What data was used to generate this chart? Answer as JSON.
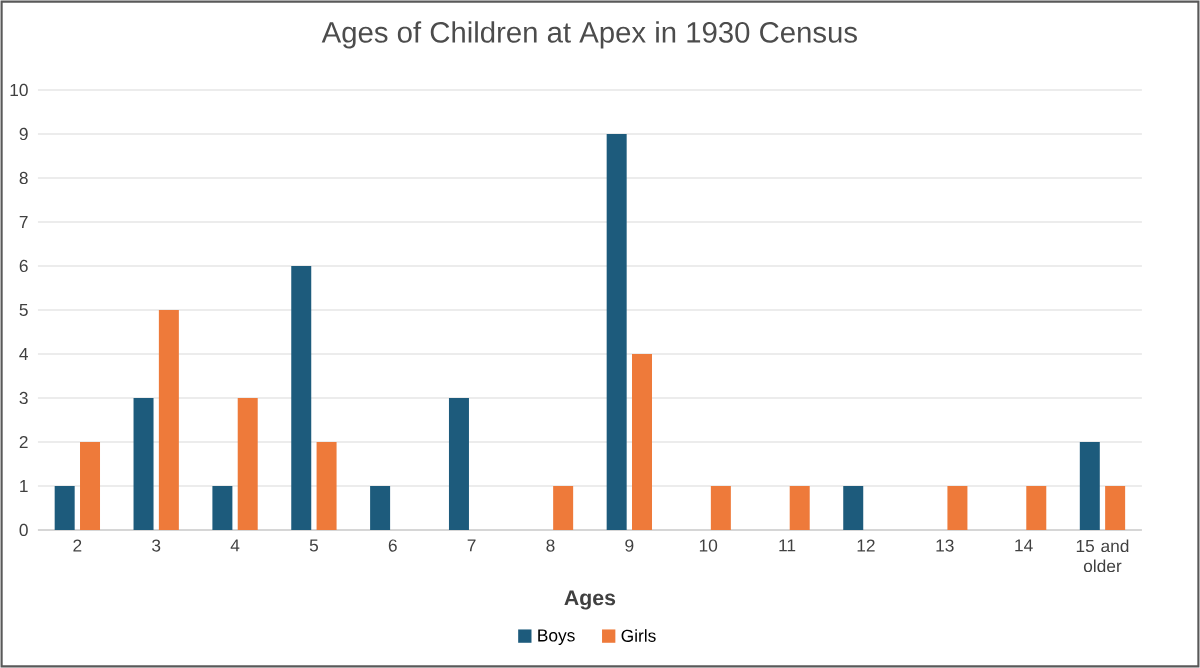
{
  "chart_data": {
    "type": "bar",
    "title": "Ages of Children at Apex in 1930 Census",
    "xlabel": "Ages",
    "categories": [
      "2",
      "3",
      "4",
      "5",
      "6",
      "7",
      "8",
      "9",
      "10",
      "11",
      "12",
      "13",
      "14",
      "15 and older"
    ],
    "series": [
      {
        "name": "Boys",
        "color": "#1d5b7c",
        "values": [
          1,
          3,
          1,
          6,
          1,
          3,
          0,
          9,
          0,
          0,
          1,
          0,
          0,
          2
        ]
      },
      {
        "name": "Girls",
        "color": "#ee7a3a",
        "values": [
          2,
          5,
          3,
          2,
          0,
          0,
          1,
          4,
          1,
          1,
          0,
          1,
          1,
          1
        ]
      }
    ],
    "ylim": [
      0,
      10
    ],
    "yticks": [
      0,
      1,
      2,
      3,
      4,
      5,
      6,
      7,
      8,
      9,
      10
    ],
    "grid": "y",
    "legend": "bottom"
  }
}
